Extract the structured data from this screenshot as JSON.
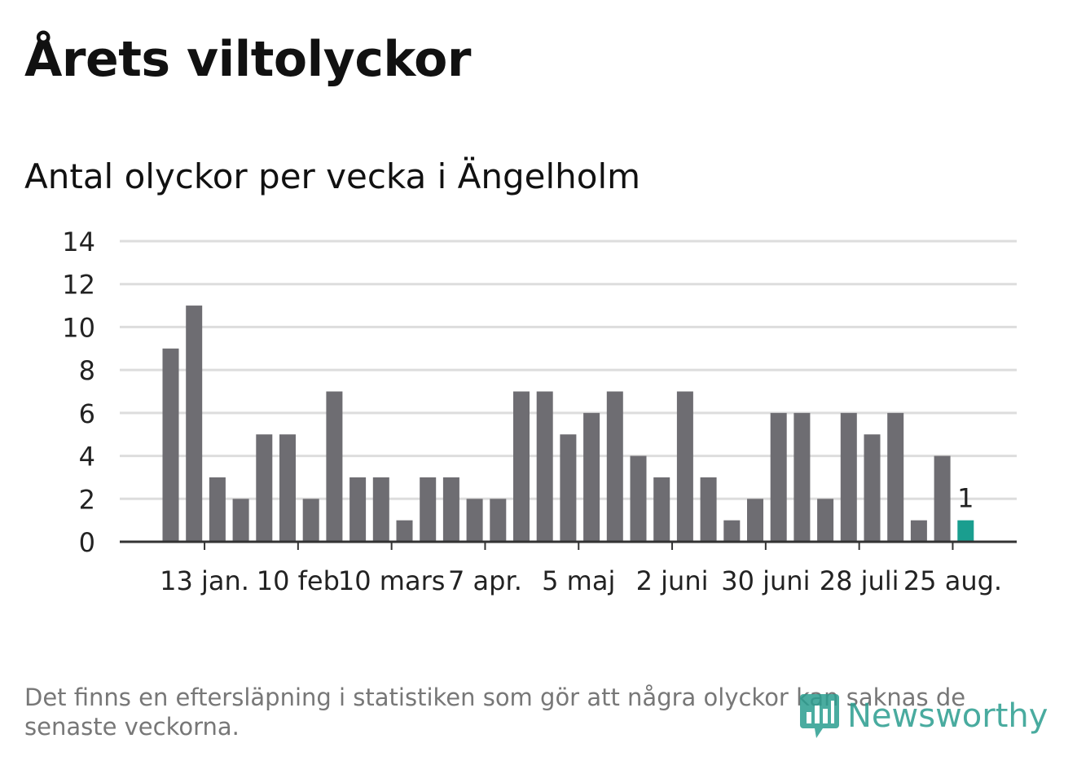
{
  "title": "Årets viltolyckor",
  "subtitle": "Antal olyckor per vecka i Ängelholm",
  "footnote": "Det finns en eftersläpning i statistiken som gör att några olyckor kan saknas de senaste veckorna.",
  "logo": {
    "text": "Newsworthy",
    "icon": "newsworthy-logo-icon"
  },
  "colors": {
    "bar": "#6e6d72",
    "highlight": "#1a9e8f",
    "grid": "#dddddd",
    "axis": "#333333"
  },
  "chart_data": {
    "type": "bar",
    "title": "Antal olyckor per vecka i Ängelholm",
    "ylim": [
      0,
      14
    ],
    "yticks": [
      0,
      2,
      4,
      6,
      8,
      10,
      12,
      14
    ],
    "grid": true,
    "values": [
      9,
      11,
      3,
      2,
      5,
      5,
      2,
      7,
      3,
      3,
      1,
      3,
      3,
      2,
      2,
      7,
      7,
      5,
      6,
      7,
      4,
      3,
      7,
      3,
      1,
      2,
      6,
      6,
      2,
      6,
      5,
      6,
      1,
      4,
      1
    ],
    "highlight_last": true,
    "data_labels": [
      {
        "index": 34,
        "text": "1"
      }
    ],
    "xticks": [
      {
        "label": "13 jan.",
        "index": 1
      },
      {
        "label": "10 feb",
        "index": 5
      },
      {
        "label": "10 mars",
        "index": 9
      },
      {
        "label": "7 apr.",
        "index": 13
      },
      {
        "label": "5 maj",
        "index": 17
      },
      {
        "label": "2 juni",
        "index": 21
      },
      {
        "label": "30 juni",
        "index": 25
      },
      {
        "label": "28 juli",
        "index": 29
      },
      {
        "label": "25 aug.",
        "index": 33
      }
    ]
  }
}
